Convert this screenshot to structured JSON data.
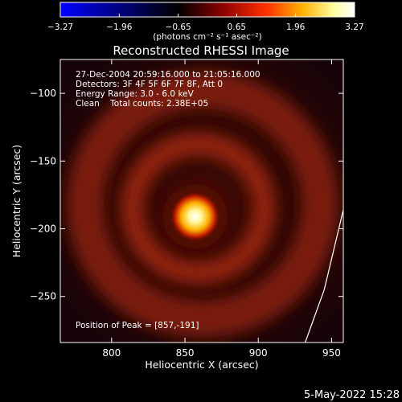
{
  "chart_data": {
    "type": "heatmap",
    "title": "Reconstructed RHESSI Image",
    "xlabel": "Heliocentric X (arcsec)",
    "ylabel": "Heliocentric Y (arcsec)",
    "xlim": [
      765,
      958
    ],
    "ylim": [
      -284,
      -75
    ],
    "x_ticks": [
      800,
      850,
      900,
      950
    ],
    "y_ticks": [
      -100,
      -150,
      -200,
      -250
    ],
    "x_tick_labels": [
      "800",
      "850",
      "900",
      "950"
    ],
    "y_tick_labels": [
      "−100",
      "−150",
      "−200",
      "−250"
    ],
    "colorbar": {
      "min": -3.27,
      "max": 3.27,
      "ticks": [
        -3.27,
        -1.96,
        -0.65,
        0.65,
        1.96,
        3.27
      ],
      "tick_labels": [
        "−3.27",
        "−1.96",
        "−0.65",
        "0.65",
        "1.96",
        "3.27"
      ],
      "unit_label": "(photons cm⁻² s⁻¹ asec⁻²)",
      "colors": [
        "#0000ff",
        "#000000",
        "#8b0000",
        "#ff3000",
        "#ffb000",
        "#ffffa0",
        "#ffffff"
      ]
    },
    "annotations": {
      "time": "27-Dec-2004 20:59:16.000 to 21:05:16.000",
      "detectors": "Detectors: 3F 4F 5F 6F 7F 8F, Att 0",
      "energy": "Energy Range: 3.0 - 6.0 keV",
      "clean": "Clean    Total counts: 2.38E+05",
      "peak": "Position of Peak = [857,-191]"
    },
    "peak": {
      "x": 857,
      "y": -191
    },
    "ring_center": {
      "x": 862,
      "y": -182
    },
    "limb_points": [
      [
        958,
        -186
      ],
      [
        945,
        -245
      ],
      [
        932,
        -284
      ]
    ]
  },
  "footer": {
    "timestamp": "5-May-2022 15:28"
  }
}
